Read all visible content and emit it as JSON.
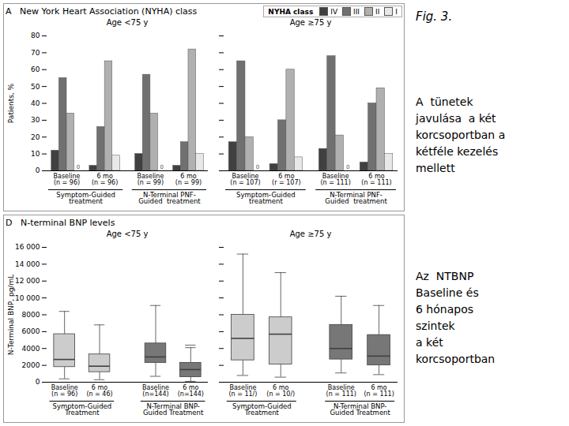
{
  "title": "Fig. 3.",
  "annotations": [
    "A  tünetek\njavulása  a két\nkorcsoportban a\nkétféle kezelés\nmellett",
    "Az  NTBNP\nBaseline és\n6 hónapos\nszintek\na két\nkorcsoportban"
  ],
  "chart_data": [
    {
      "type": "bar",
      "subtitle": "A   New York Heart Association (NYHA) class",
      "title": "Age <75 y",
      "categories": [
        "Baseline\n(n = 96)",
        "6 mo\n(n = 96)",
        "Baseline\n(n = 99)",
        "6 mo\n(n = 99)"
      ],
      "treatments": [
        "Symptom-Guided\ntreatment",
        "N-Terminal PNF-\nGuided  treatment"
      ],
      "series": [
        {
          "name": "IV",
          "color": "#404040",
          "values": [
            12,
            3,
            10,
            3
          ]
        },
        {
          "name": "III",
          "color": "#707070",
          "values": [
            55,
            26,
            57,
            17
          ]
        },
        {
          "name": "II",
          "color": "#b0b0b0",
          "values": [
            34,
            65,
            34,
            72
          ]
        },
        {
          "name": "I",
          "color": "#e8e8e8",
          "values": [
            0,
            9,
            0,
            10
          ],
          "value_labels": [
            "0",
            null,
            "0",
            null
          ]
        }
      ],
      "ylabel": "Patients, %",
      "ylim": [
        0,
        80
      ],
      "yticks": [
        0,
        10,
        20,
        30,
        40,
        50,
        60,
        70,
        80
      ]
    },
    {
      "type": "bar",
      "title": "Age ≥75 y",
      "categories": [
        "Baseline\n(n = 107)",
        "6 mo\n(r = 107)",
        "Baseline\n(n = 111)",
        "6 mo\n(n = 111)"
      ],
      "treatments": [
        "Symptom-Guided\ntreatment",
        "N-Terminal PNF-\nGuided  treatment"
      ],
      "series": [
        {
          "name": "IV",
          "color": "#404040",
          "values": [
            17,
            4,
            13,
            5
          ]
        },
        {
          "name": "III",
          "color": "#707070",
          "values": [
            65,
            30,
            68,
            40
          ]
        },
        {
          "name": "II",
          "color": "#b0b0b0",
          "values": [
            20,
            60,
            21,
            49
          ]
        },
        {
          "name": "I",
          "color": "#e8e8e8",
          "values": [
            0,
            8,
            0,
            10
          ],
          "value_labels": [
            "0",
            null,
            "0",
            null
          ]
        }
      ],
      "ylim": [
        0,
        80
      ],
      "yticks": [
        0,
        10,
        20,
        30,
        40,
        50,
        60,
        70,
        80
      ],
      "tick_labels": "x",
      "legend": "upper right",
      "legend_title": "NYHA class"
    },
    {
      "type": "box",
      "subtitle": "D   N-terminal BNP levels",
      "title": "Age <75 y",
      "categories": [
        "Baseline\n(n = 96)",
        "6 mo\n(n = 46)",
        "Baseline\n(n=144)",
        "6 mo\n(n=144)"
      ],
      "treatments": [
        "Symptom-Guided\nTreatment",
        "N-Terminal BNP-\nGuided Treatment"
      ],
      "q1": [
        1800,
        1200,
        2300,
        600
      ],
      "median": [
        2700,
        1900,
        3000,
        1500
      ],
      "q3": [
        5700,
        3300,
        4600,
        2300
      ],
      "whislo": [
        400,
        300,
        700,
        100
      ],
      "whishi": [
        8400,
        6800,
        9100,
        4100
      ],
      "fliers": [
        [],
        [],
        [],
        [
          4400
        ]
      ],
      "colors": [
        "#cccccc",
        "#cccccc",
        "#777777",
        "#777777"
      ],
      "ylabel": "N-Terminal BNP, pg/mL",
      "ylim": [
        0,
        16000
      ],
      "yticks": [
        0,
        2000,
        4000,
        6000,
        8000,
        {
          "value": 10000,
          "label": "10 000"
        },
        {
          "value": 12000,
          "label": "12 000"
        },
        {
          "value": 14000,
          "label": "14 000"
        },
        {
          "value": 16000,
          "label": "16 000"
        }
      ]
    },
    {
      "type": "box",
      "title": "Age ≥75 y",
      "categories": [
        "Baseline\n(n = 11/)",
        "6 mo\n(n = 10/)",
        "Baseline\n(n = 111)",
        "6 mo\n(n = 111)"
      ],
      "treatments": [
        "Symptom-Guided\nTreatment",
        "N-Terminal BNP-\nGuided Treatment"
      ],
      "q1": [
        2600,
        2100,
        2700,
        2000
      ],
      "median": [
        5200,
        5700,
        4000,
        3100
      ],
      "q3": [
        8000,
        7700,
        6800,
        5600
      ],
      "whislo": [
        800,
        600,
        1100,
        900
      ],
      "whishi": [
        15200,
        13000,
        10200,
        9100
      ],
      "fliers": [
        [],
        [],
        [],
        []
      ],
      "colors": [
        "#cccccc",
        "#cccccc",
        "#777777",
        "#777777"
      ],
      "ylim": [
        0,
        16000
      ],
      "yticks": [
        0,
        2000,
        4000,
        6000,
        8000,
        {
          "value": 10000,
          "label": "10 000"
        },
        {
          "value": 12000,
          "label": "12 000"
        },
        {
          "value": 14000,
          "label": "14 000"
        },
        {
          "value": 16000,
          "label": "16 000"
        }
      ],
      "tick_labels": "x"
    }
  ]
}
